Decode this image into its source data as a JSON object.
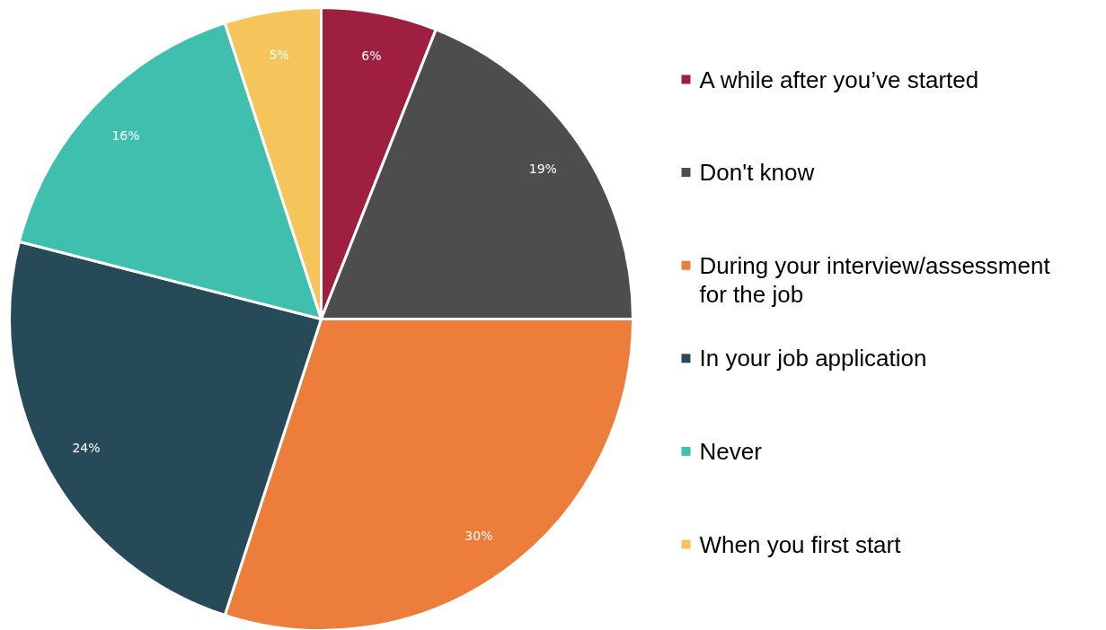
{
  "chart_data": {
    "type": "pie",
    "categories": [
      "A while after you’ve started",
      "Don't know",
      "During your interview/assessment for the job",
      "In your job application",
      "Never",
      "When you first start"
    ],
    "values": [
      6,
      19,
      30,
      24,
      16,
      5
    ],
    "colors": [
      "#9e1f3f",
      "#4d4d4d",
      "#ed7d3b",
      "#264a58",
      "#3fbfad",
      "#f5c55c"
    ],
    "value_labels": [
      "6%",
      "19%",
      "30%",
      "24%",
      "16%",
      "5%"
    ],
    "legend": "right"
  }
}
